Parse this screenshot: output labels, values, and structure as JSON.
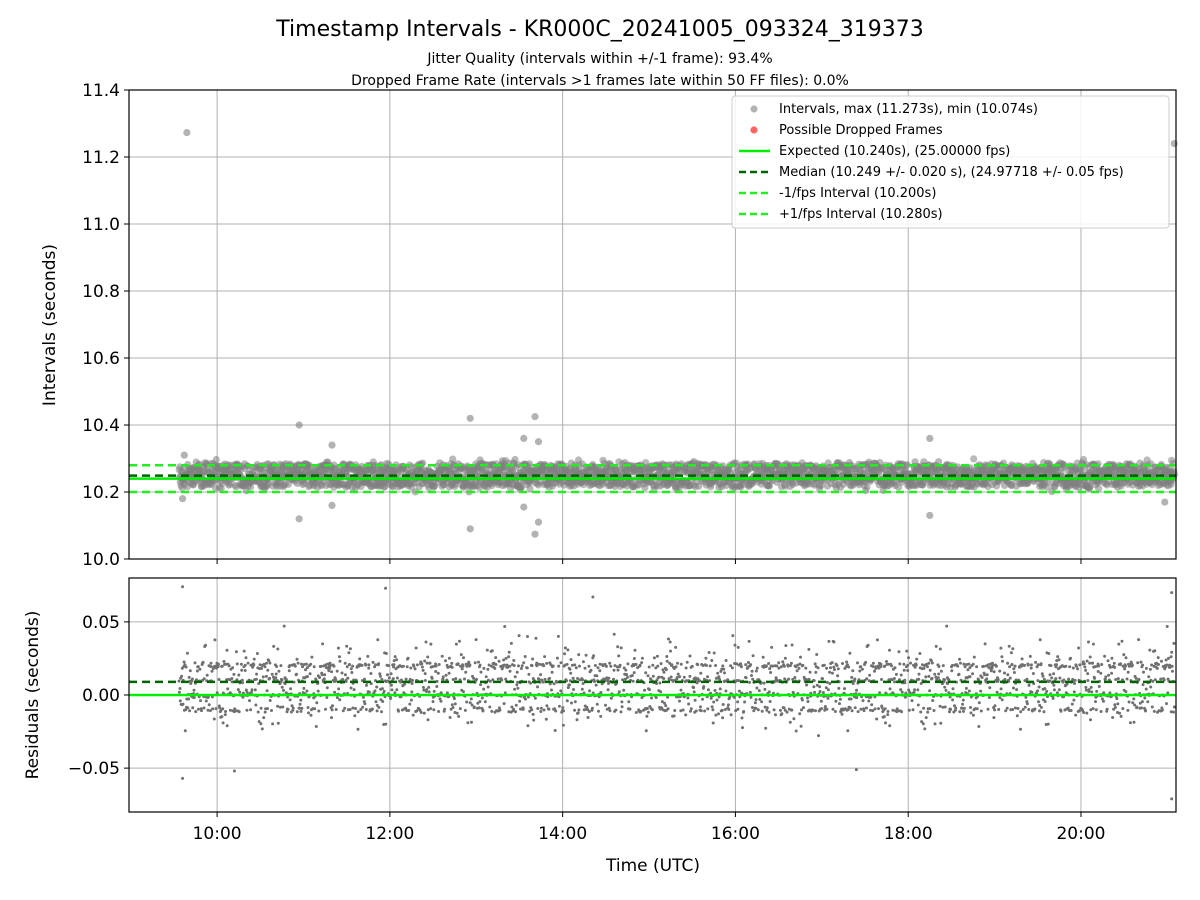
{
  "figure": {
    "title": "Timestamp Intervals - KR000C_20241005_093324_319373",
    "subtitle_1": "Jitter Quality (intervals within +/-1 frame): 93.4%",
    "subtitle_2": "Dropped Frame Rate (intervals >1 frames late within 50 FF files): 0.0%",
    "colors": {
      "points": "#808080",
      "dropped": "#ff0000",
      "expected": "#00ee00",
      "median": "#006400",
      "fps_bounds": "#22ee22",
      "grid": "#b0b0b0"
    }
  },
  "chart_data": [
    {
      "type": "scatter",
      "panel": "intervals",
      "ylabel": "Intervals (seconds)",
      "xlim": [
        8.98,
        21.1
      ],
      "ylim": [
        10.0,
        11.4
      ],
      "yticks": [
        10.0,
        10.2,
        10.4,
        10.6,
        10.8,
        11.0,
        11.2,
        11.4
      ],
      "ytick_labels": [
        "10.0",
        "10.2",
        "10.4",
        "10.6",
        "10.8",
        "11.0",
        "11.2",
        "11.4"
      ],
      "grid": true,
      "legend_position": "top-right",
      "legend": [
        {
          "kind": "marker",
          "color": "#808080",
          "label": "Intervals, max (11.273s), min (10.074s)"
        },
        {
          "kind": "marker",
          "color": "#ff0000",
          "label": "Possible Dropped Frames"
        },
        {
          "kind": "solid",
          "color": "#00ee00",
          "label": "Expected (10.240s), (25.00000 fps)"
        },
        {
          "kind": "dashed",
          "color": "#006400",
          "label": "Median (10.249 +/- 0.020 s), (24.97718 +/- 0.05 fps)"
        },
        {
          "kind": "dashed",
          "color": "#22ee22",
          "label": "-1/fps Interval (10.200s)"
        },
        {
          "kind": "dashed",
          "color": "#22ee22",
          "label": "+1/fps Interval (10.280s)"
        }
      ],
      "reference_lines": {
        "expected": 10.24,
        "median": 10.249,
        "minus_one_fps": 10.2,
        "plus_one_fps": 10.28
      },
      "series_summary": {
        "name": "Intervals",
        "time_range_hours": [
          9.56,
          21.08
        ],
        "max": 11.273,
        "min": 10.074,
        "median": 10.249,
        "std": 0.02,
        "jitter_band": [
          10.19,
          10.31
        ]
      },
      "outliers": [
        {
          "x": 9.65,
          "y": 11.273
        },
        {
          "x": 9.6,
          "y": 10.18
        },
        {
          "x": 9.62,
          "y": 10.31
        },
        {
          "x": 10.95,
          "y": 10.4
        },
        {
          "x": 10.95,
          "y": 10.12
        },
        {
          "x": 11.33,
          "y": 10.34
        },
        {
          "x": 11.33,
          "y": 10.16
        },
        {
          "x": 12.93,
          "y": 10.42
        },
        {
          "x": 12.93,
          "y": 10.09
        },
        {
          "x": 13.55,
          "y": 10.36
        },
        {
          "x": 13.55,
          "y": 10.155
        },
        {
          "x": 13.68,
          "y": 10.425
        },
        {
          "x": 13.68,
          "y": 10.074
        },
        {
          "x": 13.72,
          "y": 10.35
        },
        {
          "x": 13.72,
          "y": 10.11
        },
        {
          "x": 18.25,
          "y": 10.36
        },
        {
          "x": 18.25,
          "y": 10.13
        },
        {
          "x": 20.97,
          "y": 10.17
        },
        {
          "x": 21.08,
          "y": 11.24
        }
      ]
    },
    {
      "type": "scatter",
      "panel": "residuals",
      "ylabel": "Residuals (seconds)",
      "xlabel": "Time (UTC)",
      "xlim": [
        8.98,
        21.1
      ],
      "ylim": [
        -0.08,
        0.08
      ],
      "yticks": [
        -0.05,
        0.0,
        0.05
      ],
      "ytick_labels": [
        "−0.05",
        "0.00",
        "0.05"
      ],
      "xticks": [
        10,
        12,
        14,
        16,
        18,
        20
      ],
      "xtick_labels": [
        "10:00",
        "12:00",
        "14:00",
        "16:00",
        "18:00",
        "20:00"
      ],
      "grid": true,
      "reference_lines": {
        "zero": 0.0,
        "median_offset": 0.009
      },
      "series_summary": {
        "name": "Residuals",
        "time_range_hours": [
          9.56,
          21.08
        ],
        "spread": [
          -0.07,
          0.074
        ],
        "level_bands": [
          0.02,
          0.01,
          0.0,
          -0.01
        ]
      },
      "outliers": [
        {
          "x": 9.6,
          "y": 0.074
        },
        {
          "x": 9.6,
          "y": -0.057
        },
        {
          "x": 10.2,
          "y": -0.052
        },
        {
          "x": 11.95,
          "y": 0.073
        },
        {
          "x": 14.35,
          "y": 0.067
        },
        {
          "x": 17.4,
          "y": -0.051
        },
        {
          "x": 21.05,
          "y": 0.07
        },
        {
          "x": 21.05,
          "y": -0.071
        }
      ]
    }
  ]
}
